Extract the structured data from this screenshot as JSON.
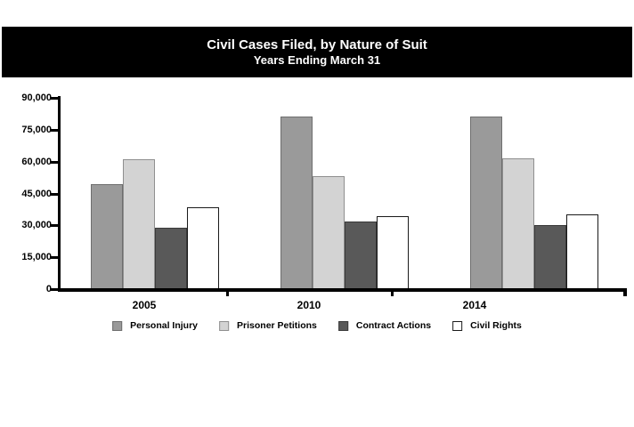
{
  "banner": {
    "title": "Civil Cases Filed, by Nature of Suit",
    "subtitle": "Years Ending March 31",
    "background_color": "#000000",
    "text_color": "#ffffff"
  },
  "chart_data": {
    "type": "bar",
    "title": "Civil Cases Filed, by Nature of Suit",
    "subtitle": "Years Ending March 31",
    "categories": [
      "2005",
      "2010",
      "2014"
    ],
    "series": [
      {
        "name": "Personal Injury",
        "color": "#9a9a9a",
        "border": "#6e6e6e",
        "values": [
          49500,
          81000,
          81000
        ]
      },
      {
        "name": "Prisoner Petitions",
        "color": "#d3d3d3",
        "border": "#8f8f8f",
        "values": [
          61000,
          53000,
          61500
        ]
      },
      {
        "name": "Contract Actions",
        "color": "#595959",
        "border": "#3a3a3a",
        "values": [
          29000,
          32000,
          30000
        ]
      },
      {
        "name": "Civil Rights",
        "color": "#ffffff",
        "border": "#1a1a1a",
        "values": [
          38500,
          34500,
          35000
        ]
      }
    ],
    "ylim": [
      0,
      90000
    ],
    "yticks": [
      {
        "value": 0,
        "label": "0"
      },
      {
        "value": 15000,
        "label": "15,000"
      },
      {
        "value": 30000,
        "label": "30,000"
      },
      {
        "value": 45000,
        "label": "45,000"
      },
      {
        "value": 60000,
        "label": "60,000"
      },
      {
        "value": 75000,
        "label": "75,000"
      },
      {
        "value": 90000,
        "label": "90,000"
      }
    ],
    "grid": false,
    "legend_position": "bottom",
    "axis_color": "#000000"
  }
}
